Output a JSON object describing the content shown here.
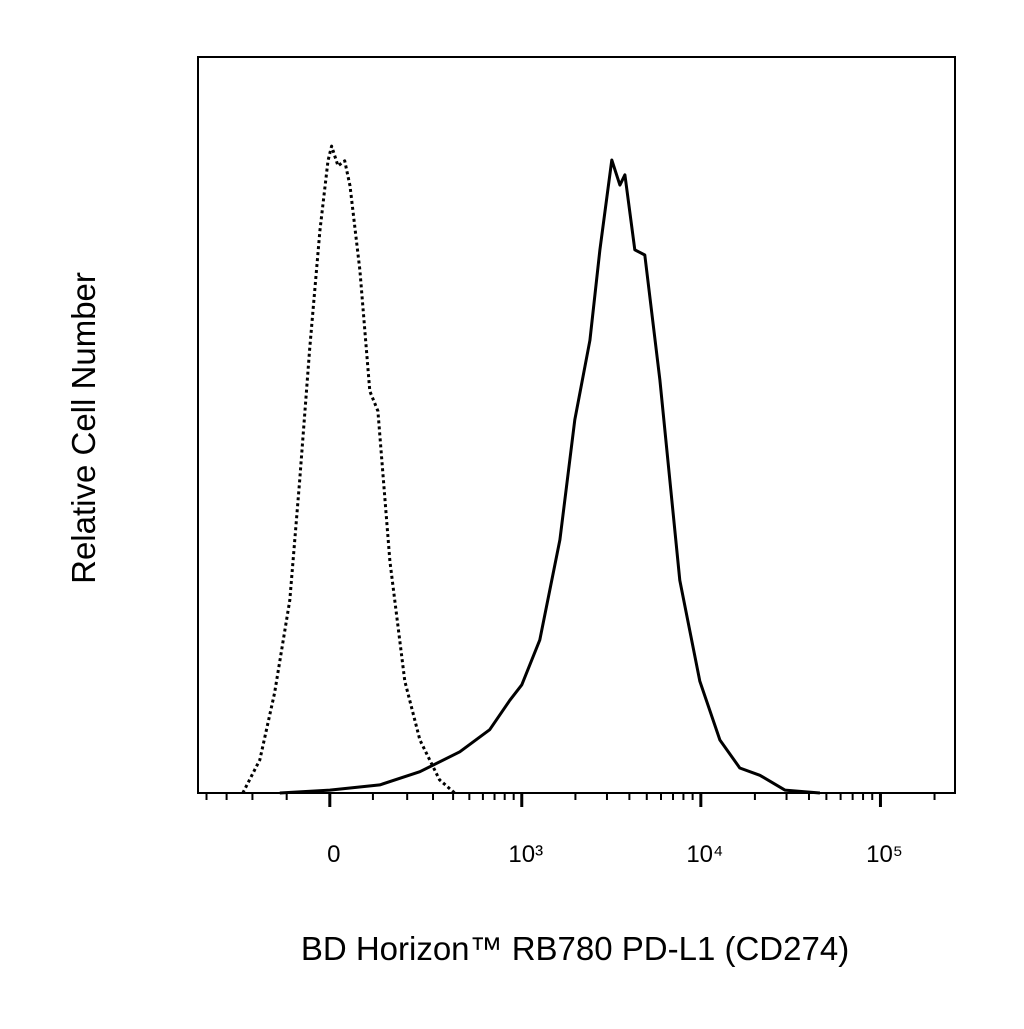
{
  "chart_data": {
    "type": "line",
    "xlabel": "BD Horizon™ RB780 PD-L1 (CD274)",
    "ylabel": "Relative Cell Number",
    "xscale": "biexponential",
    "xlim": [
      -450,
      260000
    ],
    "xticks": [
      {
        "value": 0,
        "label": "0"
      },
      {
        "value": 1000,
        "label": "10³"
      },
      {
        "value": 10000,
        "label": "10⁴"
      },
      {
        "value": 100000,
        "label": "10⁵"
      }
    ],
    "xminorticks": [
      -400,
      -300,
      -200,
      -100,
      100,
      200,
      300,
      400,
      500,
      600,
      700,
      800,
      900,
      2000,
      3000,
      4000,
      5000,
      6000,
      7000,
      8000,
      9000,
      20000,
      30000,
      40000,
      50000,
      60000,
      70000,
      80000,
      90000,
      200000
    ],
    "ylim": [
      0,
      100
    ],
    "series": [
      {
        "color": "#000000",
        "dash": "dotted",
        "x": [
          -234,
          -176,
          -132,
          -92,
          -68,
          -45,
          -22,
          -4,
          4,
          18,
          33,
          45,
          68,
          92,
          113,
          146,
          192,
          246,
          330,
          409
        ],
        "values": [
          0,
          4.5,
          13.6,
          26.2,
          42.5,
          60.2,
          76.4,
          85.9,
          87.9,
          85.2,
          85.9,
          82.5,
          71.0,
          54.6,
          51.9,
          31.5,
          15.2,
          7.2,
          1.8,
          0
        ]
      },
      {
        "color": "#000000",
        "dash": "solid",
        "x": [
          -118,
          0,
          118,
          246,
          439,
          657,
          856,
          1001,
          1264,
          1638,
          1985,
          2408,
          2738,
          3193,
          3540,
          3774,
          4290,
          4876,
          5917,
          7637,
          9873,
          12762,
          16478,
          21311,
          29360,
          46010
        ],
        "values": [
          0,
          0.4,
          1.1,
          2.9,
          5.6,
          8.6,
          12.6,
          14.7,
          20.8,
          34.4,
          50.7,
          61.5,
          73.8,
          86.0,
          82.6,
          84.0,
          73.8,
          73.1,
          56.1,
          28.9,
          15.2,
          7.2,
          3.4,
          2.4,
          0.4,
          0
        ]
      }
    ]
  }
}
